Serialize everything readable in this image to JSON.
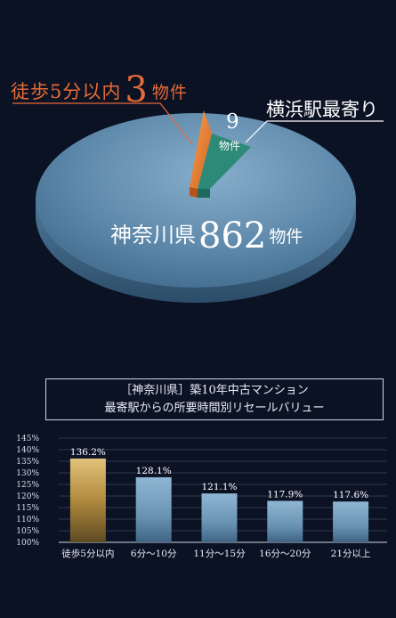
{
  "pie": {
    "walk_label": "徒歩5分以内",
    "walk_count": "3",
    "walk_unit": "物件",
    "station_label": "横浜駅最寄り",
    "station_count": "9",
    "station_unit": "物件",
    "total_label": "神奈川県",
    "total_count": "862",
    "total_unit": "物件"
  },
  "chart_header": {
    "line1": "［神奈川県］築10年中古マンション",
    "line2": "最寄駅からの所要時間別リセールバリュー"
  },
  "chart_data": [
    {
      "type": "pie",
      "slices": [
        {
          "label": "徒歩5分以内",
          "value": 3
        },
        {
          "label": "横浜駅最寄り",
          "value": 9
        },
        {
          "label": "神奈川県",
          "value": 862
        }
      ],
      "colors": [
        "#e8772e",
        "#2e8a78",
        "#6a93b3"
      ]
    },
    {
      "type": "bar",
      "title": "［神奈川県］築10年中古マンション 最寄駅からの所要時間別リセールバリュー",
      "categories": [
        "徒歩5分以内",
        "6分〜10分",
        "11分〜15分",
        "16分〜20分",
        "21分以上"
      ],
      "values": [
        136.2,
        128.1,
        121.1,
        117.9,
        117.6
      ],
      "value_labels": [
        "136.2%",
        "128.1%",
        "121.1%",
        "117.9%",
        "117.6%"
      ],
      "ylim": [
        100,
        145
      ],
      "yticks": [
        "100%",
        "105%",
        "110%",
        "115%",
        "120%",
        "125%",
        "130%",
        "135%",
        "140%",
        "145%"
      ],
      "colors": [
        "#c8a04e",
        "#6e9cbf"
      ]
    }
  ]
}
